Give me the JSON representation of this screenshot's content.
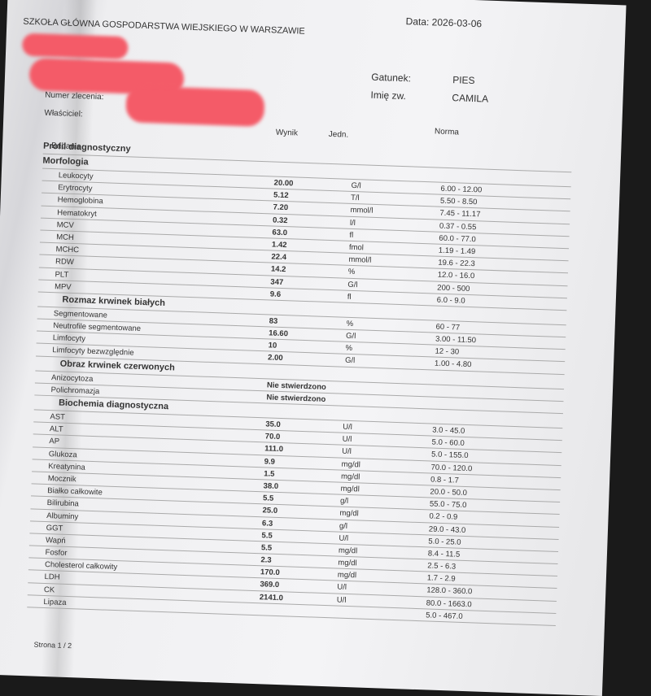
{
  "header": {
    "institution": "SZKOŁA GŁÓWNA GOSPODARSTWA WIEJSKIEGO W WARSZAWIE",
    "date_label": "Data:",
    "date": "2026-03-06"
  },
  "left_fields": [
    "Numer zlecenia:",
    "Właściciel:"
  ],
  "right_fields": [
    {
      "label": "Gatunek:",
      "value": "PIES"
    },
    {
      "label": "Imię zw.",
      "value": "CAMILA"
    }
  ],
  "columns": {
    "test": "Badanie",
    "result": "Wynik",
    "unit": "Jedn.",
    "norm": "Norma"
  },
  "profile": "Profil diagnostyczny",
  "sections": [
    {
      "title": "Morfologia",
      "rows": [
        {
          "name": "Leukocyty",
          "result": "20.00",
          "unit": "G/l",
          "norm": "6.00 - 12.00"
        },
        {
          "name": "Erytrocyty",
          "result": "5.12",
          "unit": "T/l",
          "norm": "5.50 - 8.50"
        },
        {
          "name": "Hemoglobina",
          "result": "7.20",
          "unit": "mmol/l",
          "norm": "7.45 - 11.17"
        },
        {
          "name": "Hematokryt",
          "result": "0.32",
          "unit": "l/l",
          "norm": "0.37 - 0.55"
        },
        {
          "name": "MCV",
          "result": "63.0",
          "unit": "fl",
          "norm": "60.0 - 77.0"
        },
        {
          "name": "MCH",
          "result": "1.42",
          "unit": "fmol",
          "norm": "1.19 - 1.49"
        },
        {
          "name": "MCHC",
          "result": "22.4",
          "unit": "mmol/l",
          "norm": "19.6 - 22.3"
        },
        {
          "name": "RDW",
          "result": "14.2",
          "unit": "%",
          "norm": "12.0 - 16.0"
        },
        {
          "name": "PLT",
          "result": "347",
          "unit": "G/l",
          "norm": "200 - 500"
        },
        {
          "name": "MPV",
          "result": "9.6",
          "unit": "fl",
          "norm": "6.0 - 9.0"
        }
      ]
    },
    {
      "title": "Rozmaz krwinek białych",
      "rows": [
        {
          "name": "Segmentowane",
          "result": "83",
          "unit": "%",
          "norm": "60 - 77"
        },
        {
          "name": "Neutrofile segmentowane",
          "result": "16.60",
          "unit": "G/l",
          "norm": "3.00 - 11.50"
        },
        {
          "name": "Limfocyty",
          "result": "10",
          "unit": "%",
          "norm": "12 - 30"
        },
        {
          "name": "Limfocyty bezwzględnie",
          "result": "2.00",
          "unit": "G/l",
          "norm": "1.00 - 4.80"
        }
      ]
    },
    {
      "title": "Obraz krwinek czerwonych",
      "rows": [
        {
          "name": "Anizocytoza",
          "result": "Nie stwierdzono"
        },
        {
          "name": "Polichromazja",
          "result": "Nie stwierdzono"
        }
      ]
    },
    {
      "title": "Biochemia diagnostyczna",
      "rows": [
        {
          "name": "AST",
          "result": "35.0",
          "unit": "U/l",
          "norm": "3.0 - 45.0"
        },
        {
          "name": "ALT",
          "result": "70.0",
          "unit": "U/l",
          "norm": "5.0 - 60.0"
        },
        {
          "name": "AP",
          "result": "111.0",
          "unit": "U/l",
          "norm": "5.0 - 155.0"
        },
        {
          "name": "Glukoza",
          "result": "9.9",
          "unit": "mg/dl",
          "norm": "70.0 - 120.0"
        },
        {
          "name": "Kreatynina",
          "result": "1.5",
          "unit": "mg/dl",
          "norm": "0.8 - 1.7"
        },
        {
          "name": "Mocznik",
          "result": "38.0",
          "unit": "mg/dl",
          "norm": "20.0 - 50.0"
        },
        {
          "name": "Białko całkowite",
          "result": "5.5",
          "unit": "g/l",
          "norm": "55.0 - 75.0"
        },
        {
          "name": "Bilirubina",
          "result": "25.0",
          "unit": "mg/dl",
          "norm": "0.2 - 0.9"
        },
        {
          "name": "Albuminy",
          "result": "6.3",
          "unit": "g/l",
          "norm": "29.0 - 43.0"
        },
        {
          "name": "GGT",
          "result": "5.5",
          "unit": "U/l",
          "norm": "5.0 - 25.0"
        },
        {
          "name": "Wapń",
          "result": "5.5",
          "unit": "mg/dl",
          "norm": "8.4 - 11.5"
        },
        {
          "name": "Fosfor",
          "result": "2.3",
          "unit": "mg/dl",
          "norm": "2.5 - 6.3"
        },
        {
          "name": "Cholesterol całkowity",
          "result": "170.0",
          "unit": "mg/dl",
          "norm": "1.7 - 2.9"
        },
        {
          "name": "LDH",
          "result": "369.0",
          "unit": "U/l",
          "norm": "128.0 - 360.0"
        },
        {
          "name": "CK",
          "result": "2141.0",
          "unit": "U/l",
          "norm": "80.0 - 1663.0"
        },
        {
          "name": "Lipaza",
          "norm": "5.0 - 467.0"
        }
      ]
    }
  ],
  "footer": "Strona 1 / 2"
}
